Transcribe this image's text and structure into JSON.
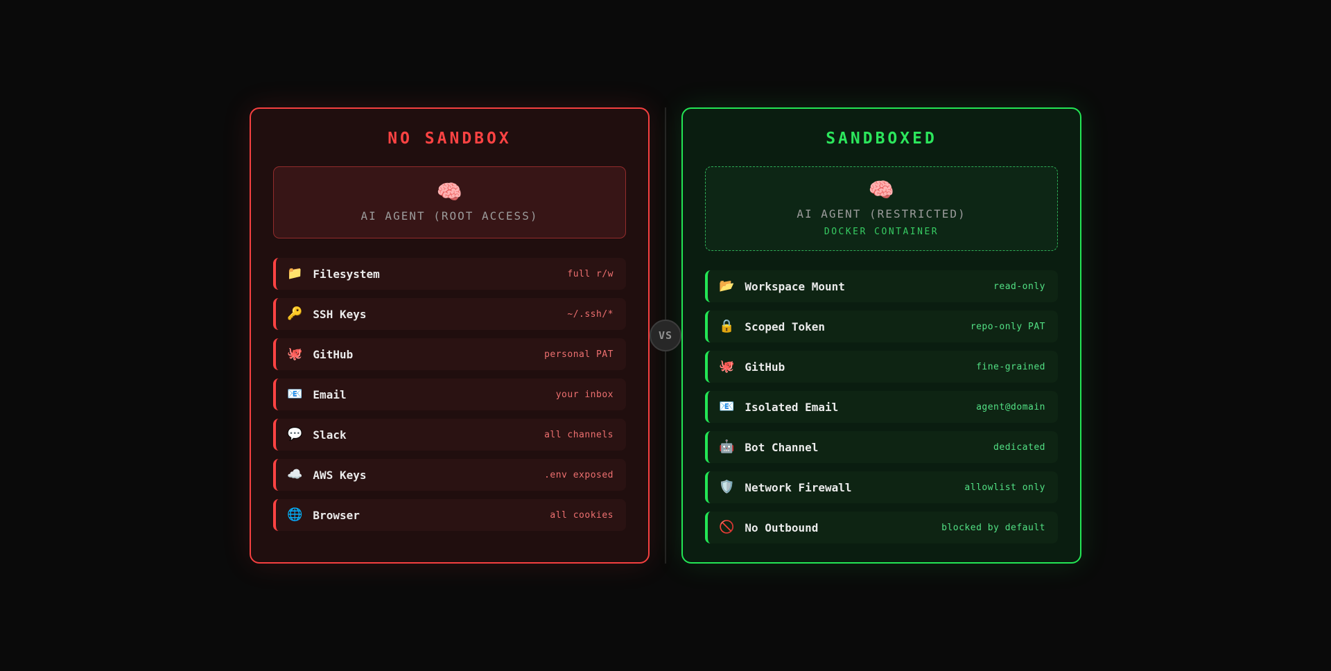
{
  "colors": {
    "background": "#0a0a0a",
    "danger_accent": "#ff4343",
    "danger_value_text": "#ee7070",
    "safe_accent": "#23e655",
    "safe_value_text": "#52e084",
    "label_text": "#ebebeb",
    "muted_text": "#9c9c9c"
  },
  "vs_badge": {
    "label": "VS"
  },
  "panels": {
    "left": {
      "title": "NO SANDBOX",
      "agent": {
        "icon": "brain-icon",
        "glyph": "🧠",
        "title": "AI AGENT (ROOT ACCESS)"
      },
      "rows": [
        {
          "icon": "folder-icon",
          "glyph": "📁",
          "label": "Filesystem",
          "value": "full r/w"
        },
        {
          "icon": "key-icon",
          "glyph": "🔑",
          "label": "SSH Keys",
          "value": "~/.ssh/*"
        },
        {
          "icon": "octopus-icon",
          "glyph": "🐙",
          "label": "GitHub",
          "value": "personal PAT"
        },
        {
          "icon": "email-icon",
          "glyph": "📧",
          "label": "Email",
          "value": "your inbox"
        },
        {
          "icon": "speech-balloon-icon",
          "glyph": "💬",
          "label": "Slack",
          "value": "all channels"
        },
        {
          "icon": "cloud-icon",
          "glyph": "☁️",
          "label": "AWS Keys",
          "value": ".env exposed"
        },
        {
          "icon": "globe-icon",
          "glyph": "🌐",
          "label": "Browser",
          "value": "all cookies"
        }
      ]
    },
    "right": {
      "title": "SANDBOXED",
      "agent": {
        "icon": "brain-icon",
        "glyph": "🧠",
        "title": "AI AGENT (RESTRICTED)",
        "subtitle": "DOCKER CONTAINER"
      },
      "rows": [
        {
          "icon": "open-folder-icon",
          "glyph": "📂",
          "label": "Workspace Mount",
          "value": "read-only"
        },
        {
          "icon": "lock-icon",
          "glyph": "🔒",
          "label": "Scoped Token",
          "value": "repo-only PAT"
        },
        {
          "icon": "octopus-icon",
          "glyph": "🐙",
          "label": "GitHub",
          "value": "fine-grained"
        },
        {
          "icon": "email-icon",
          "glyph": "📧",
          "label": "Isolated Email",
          "value": "agent@domain"
        },
        {
          "icon": "robot-icon",
          "glyph": "🤖",
          "label": "Bot Channel",
          "value": "dedicated"
        },
        {
          "icon": "shield-icon",
          "glyph": "🛡️",
          "label": "Network Firewall",
          "value": "allowlist only"
        },
        {
          "icon": "no-entry-icon",
          "glyph": "🚫",
          "label": "No Outbound",
          "value": "blocked by default"
        }
      ]
    }
  }
}
